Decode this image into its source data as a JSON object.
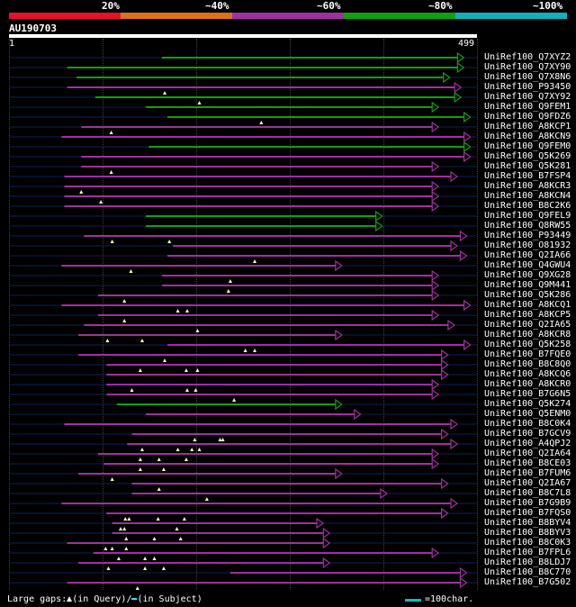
{
  "legend": {
    "pct": [
      "20%",
      "~40%",
      "~60%",
      "~80%",
      "~100%"
    ],
    "colors": [
      "#e8102a",
      "#e07018",
      "#a030a0",
      "#10a010",
      "#10b0c0"
    ]
  },
  "query": {
    "id": "AU190703",
    "ruler_start": "1",
    "ruler_end": "499",
    "length": 499
  },
  "footer": {
    "large_gaps": "Large gaps:",
    "in_query": "(in Query)/",
    "in_subject": "(in Subject)",
    "scale": "=100char."
  },
  "hits": [
    {
      "id": "UniRef100_Q7XYZ2",
      "class": "green",
      "start": 163,
      "end": 483,
      "gaps": []
    },
    {
      "id": "UniRef100_Q7XY90",
      "class": "green",
      "start": 62,
      "end": 483,
      "gaps": []
    },
    {
      "id": "UniRef100_Q7X8N6",
      "class": "green",
      "start": 72,
      "end": 468,
      "gaps": []
    },
    {
      "id": "UniRef100_P93450",
      "class": "purple",
      "start": 62,
      "end": 480,
      "gaps": [
        166
      ]
    },
    {
      "id": "UniRef100_Q7XY92",
      "class": "green",
      "start": 92,
      "end": 480,
      "gaps": [
        203
      ]
    },
    {
      "id": "UniRef100_Q9FEM1",
      "class": "green",
      "start": 146,
      "end": 456,
      "gaps": []
    },
    {
      "id": "UniRef100_Q9FDZ6",
      "class": "green",
      "start": 169,
      "end": 490,
      "gaps": [
        269
      ]
    },
    {
      "id": "UniRef100_A8KCP1",
      "class": "purple",
      "start": 77,
      "end": 456,
      "gaps": [
        109
      ]
    },
    {
      "id": "UniRef100_A8KCN9",
      "class": "purple",
      "start": 56,
      "end": 490,
      "gaps": []
    },
    {
      "id": "UniRef100_Q9FEM0",
      "class": "green",
      "start": 149,
      "end": 490,
      "gaps": []
    },
    {
      "id": "UniRef100_Q5K269",
      "class": "purple",
      "start": 77,
      "end": 490,
      "gaps": []
    },
    {
      "id": "UniRef100_Q5K281",
      "class": "purple",
      "start": 77,
      "end": 456,
      "gaps": [
        109
      ]
    },
    {
      "id": "UniRef100_B7FSP4",
      "class": "purple",
      "start": 59,
      "end": 476,
      "gaps": []
    },
    {
      "id": "UniRef100_A8KCR3",
      "class": "purple",
      "start": 59,
      "end": 456,
      "gaps": [
        77
      ]
    },
    {
      "id": "UniRef100_A8KCN4",
      "class": "purple",
      "start": 59,
      "end": 456,
      "gaps": [
        98
      ]
    },
    {
      "id": "UniRef100_B8C2K6",
      "class": "purple",
      "start": 59,
      "end": 456,
      "gaps": []
    },
    {
      "id": "UniRef100_Q9FEL9",
      "class": "green",
      "start": 146,
      "end": 396,
      "gaps": []
    },
    {
      "id": "UniRef100_Q8RW55",
      "class": "green",
      "start": 146,
      "end": 396,
      "gaps": []
    },
    {
      "id": "UniRef100_P93449",
      "class": "purple",
      "start": 80,
      "end": 486,
      "gaps": [
        110,
        171
      ]
    },
    {
      "id": "UniRef100_O81932",
      "class": "purple",
      "start": 175,
      "end": 476,
      "gaps": []
    },
    {
      "id": "UniRef100_Q2IA66",
      "class": "purple",
      "start": 169,
      "end": 486,
      "gaps": [
        262
      ]
    },
    {
      "id": "UniRef100_Q4GWU4",
      "class": "purple",
      "start": 56,
      "end": 353,
      "gaps": [
        130
      ]
    },
    {
      "id": "UniRef100_Q9XG28",
      "class": "purple",
      "start": 163,
      "end": 456,
      "gaps": [
        236
      ]
    },
    {
      "id": "UniRef100_Q9M441",
      "class": "purple",
      "start": 163,
      "end": 456,
      "gaps": [
        234
      ]
    },
    {
      "id": "UniRef100_Q5K286",
      "class": "purple",
      "start": 95,
      "end": 456,
      "gaps": [
        123
      ]
    },
    {
      "id": "UniRef100_A8KCQ1",
      "class": "purple",
      "start": 56,
      "end": 490,
      "gaps": [
        180,
        190
      ]
    },
    {
      "id": "UniRef100_A8KCP5",
      "class": "purple",
      "start": 95,
      "end": 456,
      "gaps": [
        123
      ]
    },
    {
      "id": "UniRef100_Q2IA65",
      "class": "purple",
      "start": 80,
      "end": 473,
      "gaps": [
        201
      ]
    },
    {
      "id": "UniRef100_A8KCR8",
      "class": "purple",
      "start": 74,
      "end": 353,
      "gaps": [
        105,
        142
      ]
    },
    {
      "id": "UniRef100_Q5K258",
      "class": "purple",
      "start": 169,
      "end": 490,
      "gaps": [
        252,
        262
      ]
    },
    {
      "id": "UniRef100_B7FQE0",
      "class": "purple",
      "start": 74,
      "end": 466,
      "gaps": [
        166
      ]
    },
    {
      "id": "UniRef100_B8C8Q0",
      "class": "purple",
      "start": 104,
      "end": 466,
      "gaps": [
        140,
        189,
        201
      ]
    },
    {
      "id": "UniRef100_A8KCQ6",
      "class": "purple",
      "start": 104,
      "end": 466,
      "gaps": []
    },
    {
      "id": "UniRef100_A8KCR0",
      "class": "purple",
      "start": 104,
      "end": 456,
      "gaps": [
        131,
        190,
        199
      ]
    },
    {
      "id": "UniRef100_B7G6N5",
      "class": "purple",
      "start": 104,
      "end": 456,
      "gaps": [
        240
      ]
    },
    {
      "id": "UniRef100_Q5K274",
      "class": "green",
      "start": 115,
      "end": 353,
      "gaps": []
    },
    {
      "id": "UniRef100_Q5ENM0",
      "class": "purple",
      "start": 146,
      "end": 373,
      "gaps": []
    },
    {
      "id": "UniRef100_B8C0K4",
      "class": "purple",
      "start": 59,
      "end": 476,
      "gaps": []
    },
    {
      "id": "UniRef100_B7GCV9",
      "class": "purple",
      "start": 131,
      "end": 466,
      "gaps": [
        198,
        225,
        228
      ]
    },
    {
      "id": "UniRef100_A4QPJ2",
      "class": "purple",
      "start": 126,
      "end": 476,
      "gaps": [
        142,
        180,
        195,
        203
      ]
    },
    {
      "id": "UniRef100_Q2IA64",
      "class": "purple",
      "start": 95,
      "end": 456,
      "gaps": [
        140,
        160,
        189
      ]
    },
    {
      "id": "UniRef100_B8CE03",
      "class": "purple",
      "start": 101,
      "end": 456,
      "gaps": [
        140,
        165
      ]
    },
    {
      "id": "UniRef100_B7FUM6",
      "class": "purple",
      "start": 74,
      "end": 353,
      "gaps": [
        110
      ]
    },
    {
      "id": "UniRef100_Q2IA67",
      "class": "purple",
      "start": 131,
      "end": 466,
      "gaps": [
        160
      ]
    },
    {
      "id": "UniRef100_B8C7L8",
      "class": "purple",
      "start": 131,
      "end": 401,
      "gaps": [
        211
      ]
    },
    {
      "id": "UniRef100_B7G9B9",
      "class": "purple",
      "start": 56,
      "end": 476,
      "gaps": []
    },
    {
      "id": "UniRef100_B7FQS0",
      "class": "purple",
      "start": 104,
      "end": 466,
      "gaps": [
        124,
        128,
        159,
        187
      ]
    },
    {
      "id": "UniRef100_B8BYV4",
      "class": "purple",
      "start": 110,
      "end": 333,
      "gaps": [
        119,
        123,
        179
      ]
    },
    {
      "id": "UniRef100_B8BYV3",
      "class": "purple",
      "start": 110,
      "end": 340,
      "gaps": [
        125,
        155,
        183
      ]
    },
    {
      "id": "UniRef100_B8C0K3",
      "class": "purple",
      "start": 62,
      "end": 340,
      "gaps": [
        103,
        110,
        125
      ]
    },
    {
      "id": "UniRef100_B7FPL6",
      "class": "purple",
      "start": 90,
      "end": 456,
      "gaps": [
        117,
        145,
        155
      ]
    },
    {
      "id": "UniRef100_B8LDJ7",
      "class": "purple",
      "start": 74,
      "end": 340,
      "gaps": [
        106,
        145,
        165
      ]
    },
    {
      "id": "UniRef100_B8C770",
      "class": "purple",
      "start": 236,
      "end": 486,
      "gaps": []
    },
    {
      "id": "UniRef100_B7G502",
      "class": "purple",
      "start": 62,
      "end": 486,
      "gaps": [
        137
      ]
    }
  ]
}
